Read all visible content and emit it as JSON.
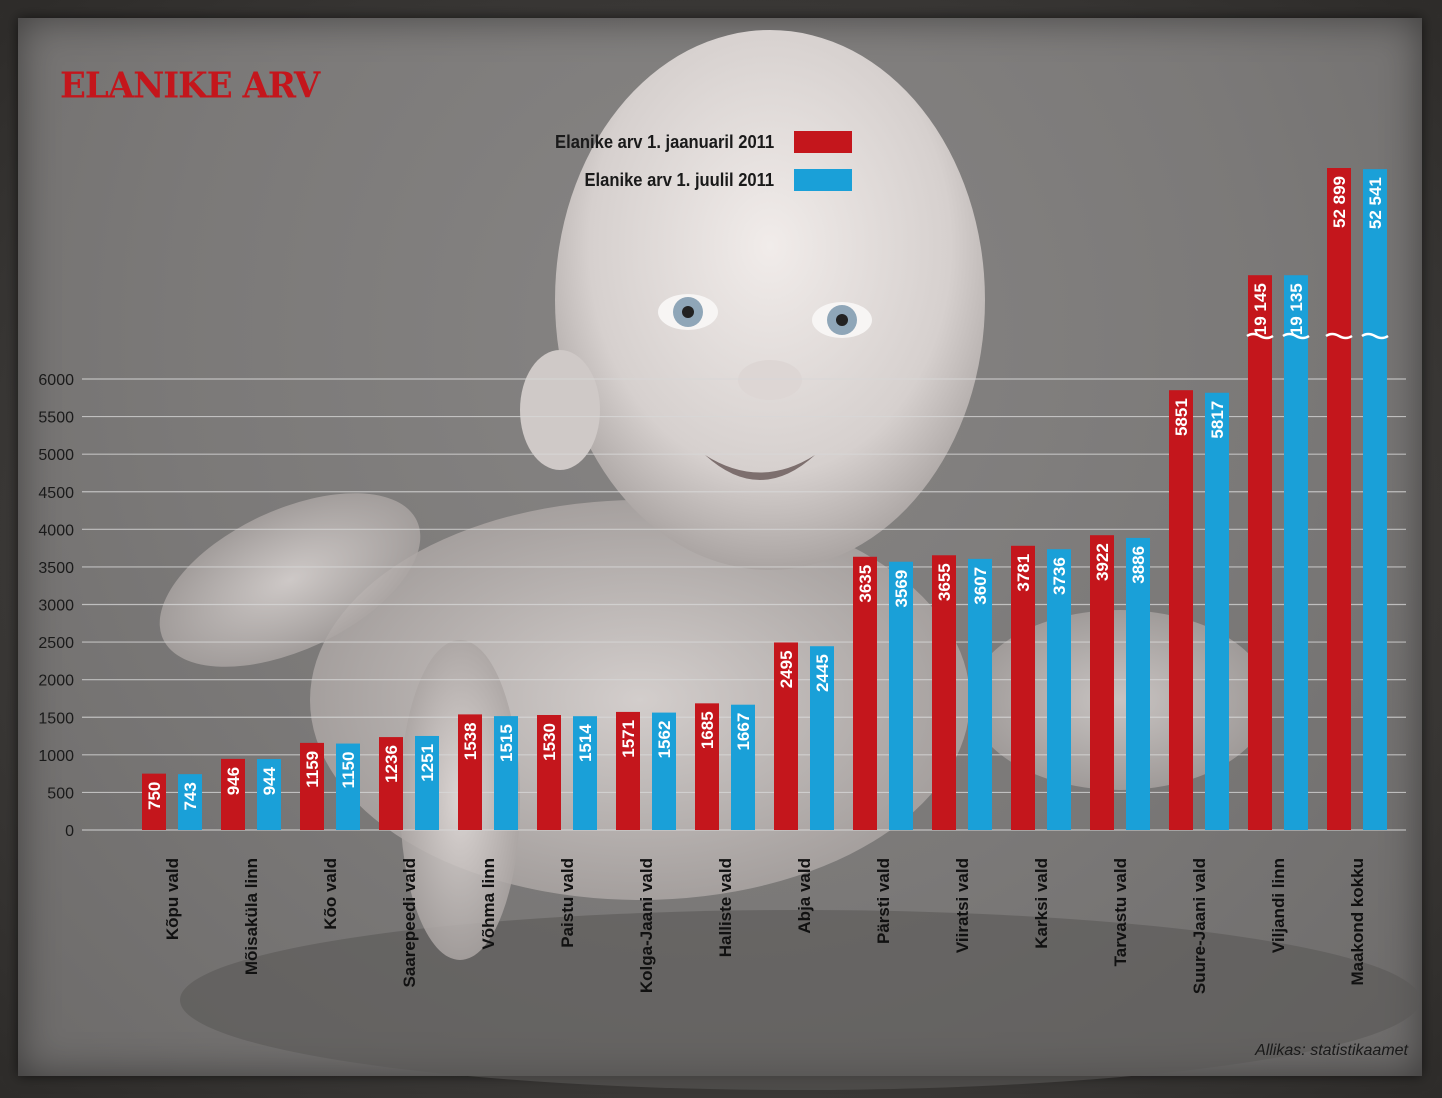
{
  "title": "ELANIKE ARV",
  "source": "Allikas: statistikaamet",
  "colors": {
    "series1": "#c4161c",
    "series2": "#1aa0d8",
    "title": "#c4161c",
    "grid": "#d8d8d8"
  },
  "chart_data": {
    "type": "bar",
    "categories": [
      "Kõpu vald",
      "Mõisaküla linn",
      "Kõo vald",
      "Saarepeedi vald",
      "Võhma linn",
      "Paistu vald",
      "Kolga-Jaani vald",
      "Halliste vald",
      "Abja vald",
      "Pärsti vald",
      "Viiratsi vald",
      "Karksi vald",
      "Tarvastu vald",
      "Suure-Jaani vald",
      "Viljandi linn",
      "Maakond kokku"
    ],
    "series": [
      {
        "name": "Elanike arv 1. jaanuaril 2011",
        "values": [
          750,
          946,
          1159,
          1236,
          1538,
          1530,
          1571,
          1685,
          2495,
          3635,
          3655,
          3781,
          3922,
          5851,
          19145,
          52899
        ],
        "labels": [
          "750",
          "946",
          "1159",
          "1236",
          "1538",
          "1530",
          "1571",
          "1685",
          "2495",
          "3635",
          "3655",
          "3781",
          "3922",
          "5851",
          "19 145",
          "52 899"
        ]
      },
      {
        "name": "Elanike arv 1. juulil 2011",
        "values": [
          743,
          944,
          1150,
          1251,
          1515,
          1514,
          1562,
          1667,
          2445,
          3569,
          3607,
          3736,
          3886,
          5817,
          19135,
          52541
        ],
        "labels": [
          "743",
          "944",
          "1150",
          "1251",
          "1515",
          "1514",
          "1562",
          "1667",
          "2445",
          "3569",
          "3607",
          "3736",
          "3886",
          "5817",
          "19 135",
          "52 541"
        ]
      }
    ],
    "yticks": [
      "0",
      "500",
      "1000",
      "1500",
      "2000",
      "2500",
      "3000",
      "3500",
      "4000",
      "4500",
      "5000",
      "5500",
      "6000"
    ],
    "ylim": [
      0,
      6000
    ],
    "axis_break": true,
    "grid": true,
    "legend": "top-center"
  }
}
